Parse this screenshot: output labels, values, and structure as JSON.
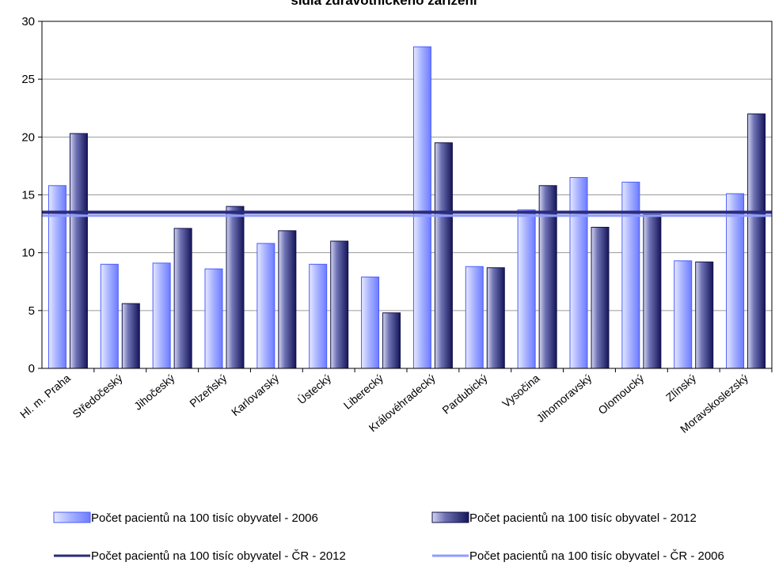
{
  "chart_data": {
    "type": "bar",
    "title": "sídla zdravotnického zařízení",
    "categories": [
      "Hl. m. Praha",
      "Středočeský",
      "Jihočeský",
      "Plzeňský",
      "Karlovarský",
      "Ústecký",
      "Liberecký",
      "Královéhradecký",
      "Pardubický",
      "Vysočina",
      "Jihomoravský",
      "Olomoucký",
      "Zlínský",
      "Moravskoslezský"
    ],
    "series": [
      {
        "name": "Počet pacientů na 100 tisíc obyvatel - 2006",
        "kind": "bar",
        "color": "#8f9cff",
        "values": [
          15.8,
          9.0,
          9.1,
          8.6,
          10.8,
          9.0,
          7.9,
          27.8,
          8.8,
          13.7,
          16.5,
          16.1,
          9.3,
          15.1
        ]
      },
      {
        "name": "Počet pacientů na 100 tisíc obyvatel - 2012",
        "kind": "bar",
        "color": "#23236e",
        "values": [
          20.3,
          5.6,
          12.1,
          14.0,
          11.9,
          11.0,
          4.8,
          19.5,
          8.7,
          15.8,
          12.2,
          13.3,
          9.2,
          22.0
        ]
      },
      {
        "name": "Počet pacientů na 100 tisíc obyvatel - ČR - 2012",
        "kind": "line",
        "color": "#2b2b7a",
        "value": 13.5
      },
      {
        "name": "Počet pacientů na 100 tisíc obyvatel - ČR - 2006",
        "kind": "line",
        "color": "#8f9cff",
        "value": 13.2
      }
    ],
    "ylim": [
      0,
      30
    ],
    "yticks": [
      0,
      5,
      10,
      15,
      20,
      25,
      30
    ],
    "grid": true,
    "legend_position": "bottom"
  }
}
